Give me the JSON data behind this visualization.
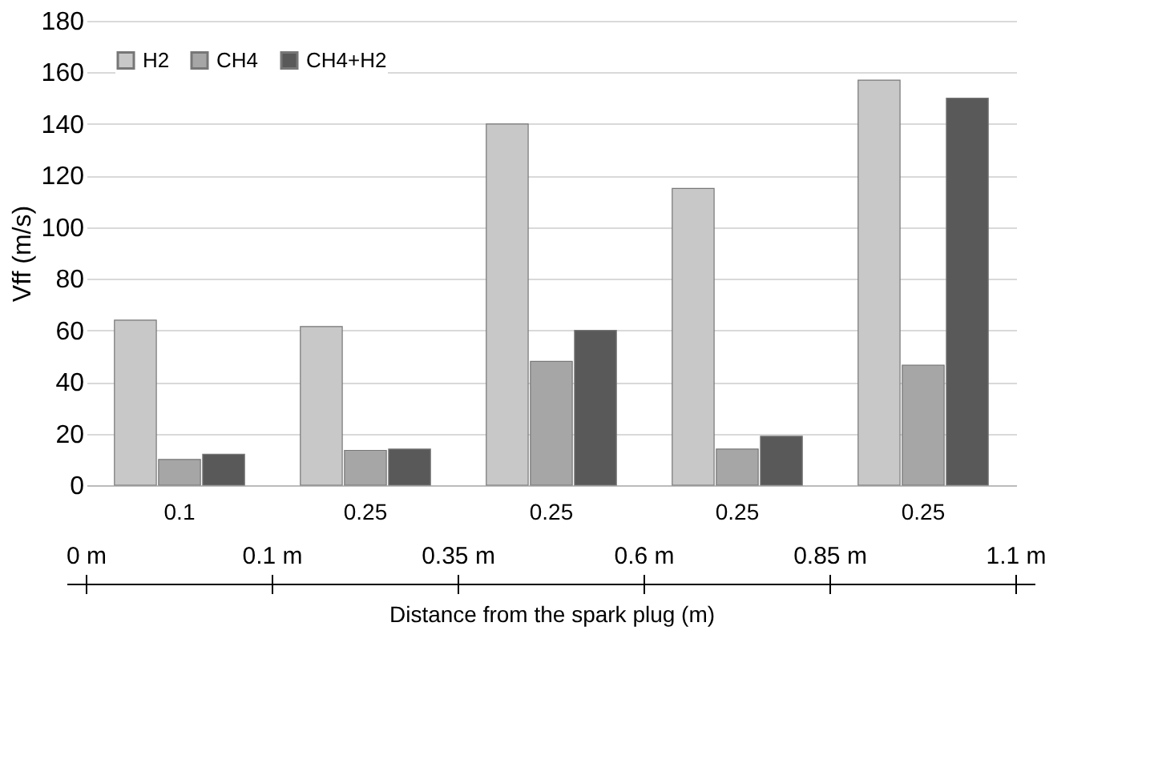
{
  "chart_data": {
    "type": "bar",
    "ylabel": "Vff (m/s)",
    "xlabel": "Distance from the spark plug  (m)",
    "categories": [
      "0.1",
      "0.25",
      "0.25",
      "0.25",
      "0.25"
    ],
    "series": [
      {
        "name": "H2",
        "color": "#c8c8c8",
        "values": [
          64,
          61.5,
          140,
          115,
          157
        ]
      },
      {
        "name": "CH4",
        "color": "#a6a6a6",
        "values": [
          10,
          13.5,
          48,
          14,
          46.5
        ]
      },
      {
        "name": "CH4+H2",
        "color": "#595959",
        "values": [
          12,
          14,
          60,
          19,
          150
        ]
      }
    ],
    "ylim": [
      0,
      180
    ],
    "yticks": [
      0,
      20,
      40,
      60,
      80,
      100,
      120,
      140,
      160,
      180
    ],
    "grid": "y",
    "legend": "top left",
    "annotations": [
      "0 m",
      "0.1 m",
      "0.35 m",
      "0.6 m",
      "0.85 m",
      "1.1 m"
    ]
  }
}
